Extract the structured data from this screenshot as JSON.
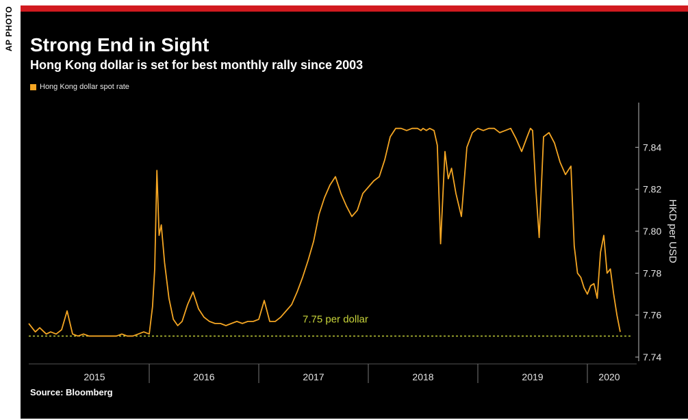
{
  "credit": "AP PHOTO",
  "colors": {
    "accent_bar": "#d11a1f",
    "background": "#000000",
    "series": "#f5a623",
    "reference_line": "#c8d43a",
    "text": "#ffffff"
  },
  "chart_data": {
    "type": "line",
    "title": "Strong End in Sight",
    "subtitle": "Hong Kong dollar is set for best monthly rally since 2003",
    "ylabel": "HKD per USD",
    "xlabel": "",
    "ylim": [
      7.74,
      7.86
    ],
    "xlim": [
      2014.9,
      2020.45
    ],
    "y_ticks": [
      7.74,
      7.76,
      7.78,
      7.8,
      7.82,
      7.84
    ],
    "y_tick_labels": [
      "7.74",
      "7.76",
      "7.78",
      "7.80",
      "7.82",
      "7.84"
    ],
    "x_tick_labels": [
      "2015",
      "2016",
      "2017",
      "2018",
      "2019",
      "2020"
    ],
    "x_tick_label_positions": [
      2015.5,
      2016.5,
      2017.5,
      2018.5,
      2019.5,
      2020.2
    ],
    "x_year_boundaries": [
      2016.0,
      2017.0,
      2018.0,
      2019.0,
      2020.0
    ],
    "grid": false,
    "legend_position": "top-left",
    "series": [
      {
        "name": "Hong Kong dollar spot rate",
        "x": [
          2014.9,
          2014.96,
          2015.0,
          2015.06,
          2015.1,
          2015.15,
          2015.2,
          2015.25,
          2015.3,
          2015.35,
          2015.4,
          2015.45,
          2015.5,
          2015.55,
          2015.6,
          2015.65,
          2015.7,
          2015.75,
          2015.8,
          2015.85,
          2015.9,
          2015.95,
          2016.0,
          2016.03,
          2016.05,
          2016.07,
          2016.09,
          2016.11,
          2016.14,
          2016.18,
          2016.22,
          2016.26,
          2016.3,
          2016.35,
          2016.4,
          2016.45,
          2016.5,
          2016.55,
          2016.6,
          2016.65,
          2016.7,
          2016.75,
          2016.8,
          2016.85,
          2016.9,
          2016.95,
          2017.0,
          2017.05,
          2017.1,
          2017.15,
          2017.2,
          2017.25,
          2017.3,
          2017.35,
          2017.4,
          2017.45,
          2017.5,
          2017.55,
          2017.6,
          2017.65,
          2017.7,
          2017.75,
          2017.8,
          2017.85,
          2017.9,
          2017.95,
          2018.0,
          2018.05,
          2018.1,
          2018.15,
          2018.2,
          2018.25,
          2018.3,
          2018.35,
          2018.4,
          2018.45,
          2018.48,
          2018.5,
          2018.53,
          2018.56,
          2018.6,
          2018.63,
          2018.66,
          2018.7,
          2018.73,
          2018.76,
          2018.8,
          2018.85,
          2018.9,
          2018.95,
          2019.0,
          2019.05,
          2019.1,
          2019.15,
          2019.2,
          2019.25,
          2019.3,
          2019.35,
          2019.4,
          2019.45,
          2019.48,
          2019.5,
          2019.53,
          2019.56,
          2019.6,
          2019.65,
          2019.7,
          2019.75,
          2019.8,
          2019.85,
          2019.88,
          2019.91,
          2019.94,
          2019.97,
          2020.0,
          2020.03,
          2020.06,
          2020.09,
          2020.12,
          2020.15,
          2020.18,
          2020.21,
          2020.24,
          2020.27,
          2020.3
        ],
        "values": [
          7.756,
          7.752,
          7.754,
          7.751,
          7.752,
          7.751,
          7.753,
          7.762,
          7.751,
          7.75,
          7.751,
          7.75,
          7.75,
          7.75,
          7.75,
          7.75,
          7.75,
          7.751,
          7.75,
          7.75,
          7.751,
          7.752,
          7.751,
          7.764,
          7.782,
          7.829,
          7.798,
          7.803,
          7.785,
          7.768,
          7.758,
          7.755,
          7.757,
          7.765,
          7.771,
          7.763,
          7.759,
          7.757,
          7.756,
          7.756,
          7.755,
          7.756,
          7.757,
          7.756,
          7.757,
          7.757,
          7.758,
          7.767,
          7.757,
          7.757,
          7.759,
          7.762,
          7.765,
          7.771,
          7.778,
          7.786,
          7.795,
          7.808,
          7.816,
          7.822,
          7.826,
          7.818,
          7.812,
          7.807,
          7.81,
          7.818,
          7.821,
          7.824,
          7.826,
          7.834,
          7.845,
          7.849,
          7.849,
          7.848,
          7.849,
          7.849,
          7.848,
          7.849,
          7.848,
          7.849,
          7.848,
          7.841,
          7.794,
          7.838,
          7.825,
          7.83,
          7.818,
          7.807,
          7.84,
          7.847,
          7.849,
          7.848,
          7.849,
          7.849,
          7.847,
          7.848,
          7.849,
          7.844,
          7.838,
          7.845,
          7.849,
          7.848,
          7.82,
          7.797,
          7.845,
          7.847,
          7.842,
          7.833,
          7.827,
          7.831,
          7.793,
          7.78,
          7.778,
          7.773,
          7.77,
          7.774,
          7.775,
          7.768,
          7.79,
          7.798,
          7.78,
          7.782,
          7.77,
          7.76,
          7.752
        ]
      }
    ],
    "reference_line": {
      "value": 7.75,
      "label": "7.75 per dollar"
    }
  }
}
